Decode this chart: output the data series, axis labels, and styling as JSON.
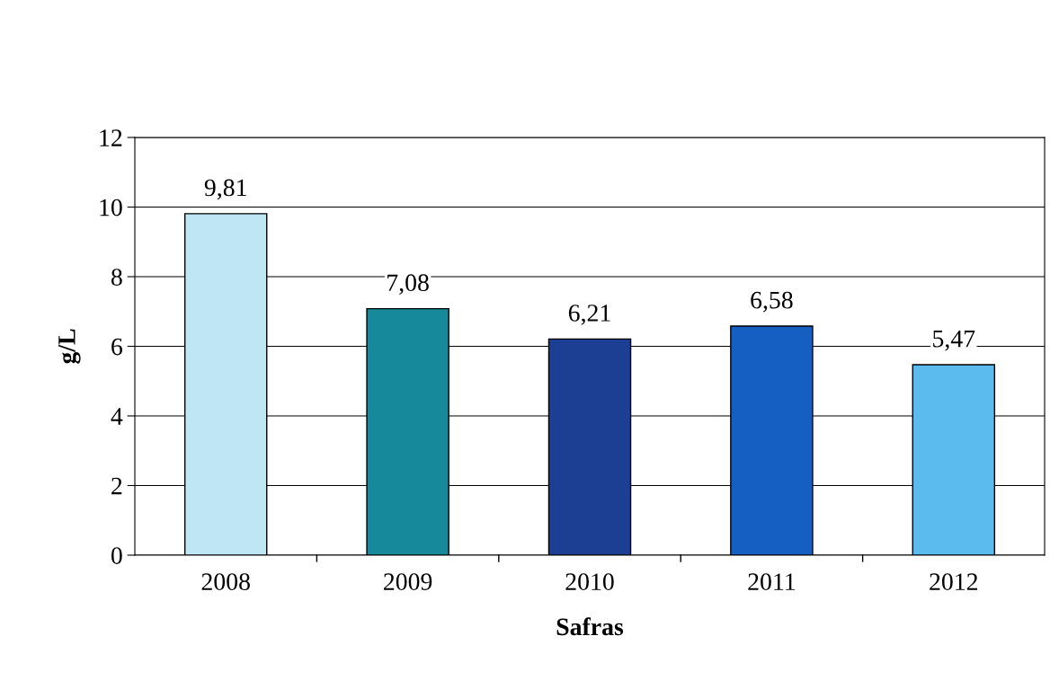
{
  "chart_data": {
    "type": "bar",
    "xlabel": "Safras",
    "ylabel": "g/L",
    "categories": [
      "2008",
      "2009",
      "2010",
      "2011",
      "2012"
    ],
    "values": [
      9.81,
      7.08,
      6.21,
      6.58,
      5.47
    ],
    "colors": [
      "#bfe6f5",
      "#16899a",
      "#1c3e93",
      "#165fc2",
      "#5bbbef"
    ],
    "value_labels": [
      "9,81",
      "7,08",
      "6,21",
      "6,58",
      "5,47"
    ],
    "ylim": [
      0,
      12
    ],
    "yticks": [
      0,
      2,
      4,
      6,
      8,
      10,
      12
    ],
    "grid": "y",
    "legend": false
  }
}
